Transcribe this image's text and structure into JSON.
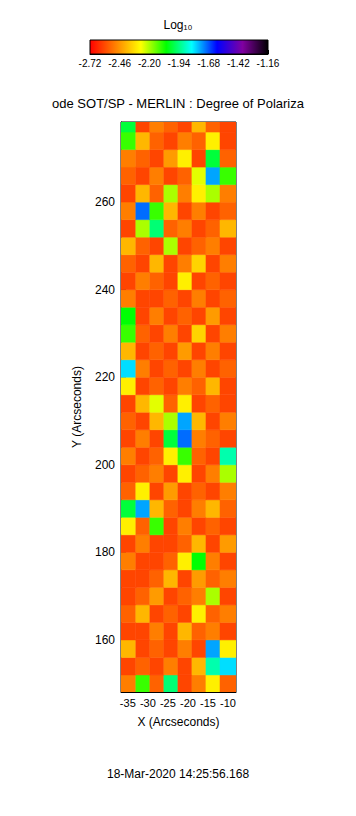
{
  "chart_data": {
    "type": "heatmap",
    "title": "ode SOT/SP - MERLIN : Degree of Polariza",
    "subtitle": "18-Mar-2020 14:25:56.168",
    "x_label": "X (Arcseconds)",
    "y_label": "Y (Arcseconds)",
    "xlim": [
      -36.7,
      -8.0
    ],
    "ylim": [
      148.1,
      278.3
    ],
    "xticks": [
      -35,
      -30,
      -25,
      -20,
      -15,
      -10
    ],
    "yticks": [
      160,
      180,
      200,
      220,
      240,
      260
    ],
    "grid": false,
    "colorbar_label": "Log₁₀",
    "clim": [
      -2.72,
      -1.16
    ],
    "cticks": [
      -2.72,
      -2.46,
      {
        "value": -2.2,
        "label": "-2.20"
      },
      -1.94,
      -1.68,
      -1.42,
      -1.16
    ],
    "x_edges": [
      -36.7,
      -33,
      -29.5,
      -26,
      -22.5,
      -19,
      -15.5,
      -12,
      -8.0
    ],
    "y_edges": [
      148.1,
      152,
      156,
      160,
      164,
      168,
      172,
      176,
      180,
      184,
      188,
      192,
      196,
      200,
      204,
      208,
      212,
      216,
      220,
      224,
      228,
      232,
      236,
      240,
      244,
      248,
      252,
      256,
      260,
      264,
      268,
      272,
      276,
      278.3
    ],
    "cells": [
      [
        -2.5,
        -2.1,
        -2.55,
        -1.95,
        -2.6,
        -2.5,
        -2.3,
        -2.55
      ],
      [
        -2.6,
        -2.55,
        -2.6,
        -2.5,
        -2.6,
        -2.4,
        -1.9,
        -1.8
      ],
      [
        -2.4,
        -2.6,
        -2.55,
        -2.6,
        -2.5,
        -2.6,
        -1.75,
        -2.3
      ],
      [
        -2.6,
        -2.6,
        -2.5,
        -2.6,
        -2.4,
        -2.55,
        -2.5,
        -2.6
      ],
      [
        -2.55,
        -2.4,
        -2.6,
        -2.55,
        -2.6,
        -2.3,
        -2.55,
        -2.5
      ],
      [
        -2.6,
        -2.55,
        -2.45,
        -2.6,
        -2.55,
        -2.5,
        -2.2,
        -2.6
      ],
      [
        -2.6,
        -2.6,
        -2.55,
        -2.4,
        -2.6,
        -2.45,
        -2.55,
        -2.5
      ],
      [
        -2.5,
        -2.6,
        -2.6,
        -2.55,
        -2.3,
        -2.05,
        -2.5,
        -2.6
      ],
      [
        -2.6,
        -2.5,
        -2.6,
        -2.6,
        -2.55,
        -2.4,
        -2.6,
        -2.45
      ],
      [
        -2.3,
        -2.55,
        -2.1,
        -2.6,
        -2.5,
        -2.6,
        -2.55,
        -2.6
      ],
      [
        -2.0,
        -1.75,
        -2.4,
        -2.55,
        -2.6,
        -2.5,
        -2.4,
        -2.55
      ],
      [
        -2.55,
        -2.3,
        -2.6,
        -2.45,
        -2.6,
        -2.55,
        -2.6,
        -2.5
      ],
      [
        -2.6,
        -2.55,
        -2.5,
        -2.6,
        -2.3,
        -2.6,
        -2.5,
        -2.2
      ],
      [
        -2.5,
        -2.6,
        -2.55,
        -2.3,
        -2.1,
        -2.55,
        -2.6,
        -1.9
      ],
      [
        -2.6,
        -2.5,
        -2.6,
        -2.0,
        -1.7,
        -2.5,
        -2.55,
        -2.6
      ],
      [
        -2.55,
        -2.6,
        -2.4,
        -2.2,
        -1.75,
        -2.4,
        -2.6,
        -2.5
      ],
      [
        -2.6,
        -2.4,
        -2.25,
        -2.55,
        -2.3,
        -2.6,
        -2.55,
        -2.6
      ],
      [
        -2.3,
        -2.6,
        -2.55,
        -2.6,
        -2.5,
        -2.55,
        -2.4,
        -2.6
      ],
      [
        -1.8,
        -2.5,
        -2.6,
        -2.55,
        -2.6,
        -2.5,
        -2.6,
        -2.55
      ],
      [
        -2.4,
        -2.6,
        -2.55,
        -2.6,
        -2.45,
        -2.6,
        -2.5,
        -2.6
      ],
      [
        -2.1,
        -2.55,
        -2.6,
        -2.5,
        -2.6,
        -2.35,
        -2.6,
        -2.5
      ],
      [
        -2.05,
        -2.6,
        -2.5,
        -2.6,
        -2.55,
        -2.6,
        -2.45,
        -2.6
      ],
      [
        -2.5,
        -2.6,
        -2.6,
        -2.55,
        -2.6,
        -2.5,
        -2.6,
        -2.55
      ],
      [
        -2.6,
        -2.5,
        -2.55,
        -2.6,
        -2.3,
        -2.6,
        -2.55,
        -2.6
      ],
      [
        -2.55,
        -2.6,
        -2.4,
        -2.6,
        -2.5,
        -2.35,
        -2.6,
        -2.5
      ],
      [
        -2.4,
        -2.55,
        -2.6,
        -2.2,
        -2.6,
        -2.55,
        -2.5,
        -2.6
      ],
      [
        -2.6,
        -2.2,
        -1.95,
        -2.55,
        -2.5,
        -2.6,
        -2.55,
        -2.4
      ],
      [
        -2.5,
        -1.7,
        -2.1,
        -2.4,
        -2.6,
        -2.5,
        -2.6,
        -2.55
      ],
      [
        -2.6,
        -2.4,
        -2.55,
        -2.2,
        -2.5,
        -2.3,
        -2.2,
        -2.5
      ],
      [
        -2.55,
        -2.6,
        -2.5,
        -2.6,
        -2.55,
        -2.25,
        -1.75,
        -2.1
      ],
      [
        -2.5,
        -2.55,
        -2.6,
        -2.45,
        -2.3,
        -2.6,
        -2.0,
        -2.55
      ],
      [
        -2.1,
        -2.4,
        -2.55,
        -2.6,
        -2.5,
        -2.55,
        -2.3,
        -2.6
      ],
      [
        -2.0,
        -2.6,
        -2.5,
        -2.55,
        -2.6,
        -2.4,
        -2.55,
        -2.6
      ]
    ]
  }
}
